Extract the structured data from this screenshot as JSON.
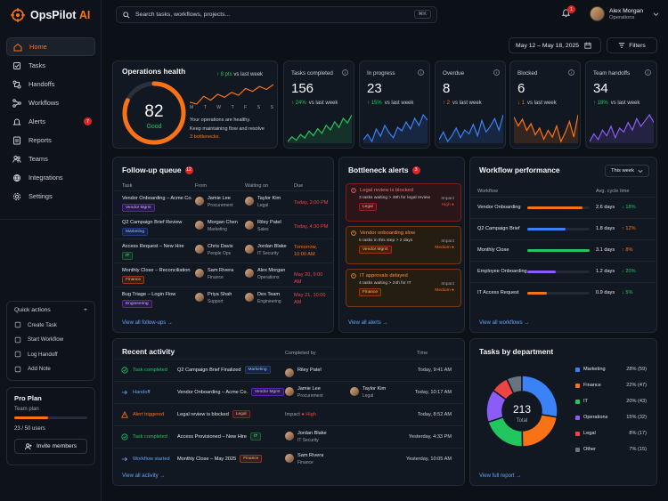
{
  "app": {
    "brand_main": "OpsPilot",
    "brand_accent": "AI"
  },
  "sidebar": {
    "items": [
      {
        "label": "Home",
        "icon": "home-icon"
      },
      {
        "label": "Tasks",
        "icon": "checkbox-icon"
      },
      {
        "label": "Handoffs",
        "icon": "handoff-icon"
      },
      {
        "label": "Workflows",
        "icon": "workflow-icon"
      },
      {
        "label": "Alerts",
        "icon": "bell-icon",
        "badge": "7"
      },
      {
        "label": "Reports",
        "icon": "report-icon"
      },
      {
        "label": "Teams",
        "icon": "team-icon"
      },
      {
        "label": "Integrations",
        "icon": "integration-icon"
      },
      {
        "label": "Settings",
        "icon": "gear-icon"
      }
    ]
  },
  "quick_actions": {
    "title": "Quick actions",
    "add": "+",
    "items": [
      "Create Task",
      "Start Workflow",
      "Log Handoff",
      "Add Note"
    ]
  },
  "plan": {
    "title": "Pro Plan",
    "subtitle": "Team plan",
    "usage": "23 / 50 users",
    "progress": 0.46,
    "button": "Invite members"
  },
  "header": {
    "search_placeholder": "Search tasks, workflows, projects...",
    "shortcut": "⌘K",
    "notif_count": "1",
    "user_name": "Alex Morgan",
    "user_role": "Operations",
    "date_range": "May 12 – May 18, 2025",
    "filters": "Filters"
  },
  "health": {
    "title": "Operations health",
    "score": "82",
    "score_value": 82,
    "score_label": "Good",
    "delta": "↑ 8 pts",
    "delta_suffix": "vs last week",
    "days": [
      "M",
      "T",
      "W",
      "T",
      "F",
      "S",
      "S"
    ],
    "trend": [
      64,
      62,
      70,
      66,
      72,
      69,
      74,
      71,
      78,
      75,
      80,
      77,
      82
    ],
    "text_1": "Your operations are healthy.",
    "text_2": "Keep maintaining flow and resolve",
    "text_link": "3 bottlenecks."
  },
  "metrics": [
    {
      "label": "Tasks completed",
      "value": "156",
      "delta": "↑ 24%",
      "dir": "up",
      "suffix": "vs last week",
      "color": "#22c55e",
      "spark": [
        10,
        14,
        11,
        16,
        13,
        19,
        15,
        21,
        17,
        24,
        20,
        27,
        22,
        30,
        26,
        33
      ]
    },
    {
      "label": "In progress",
      "value": "23",
      "delta": "↑ 15%",
      "dir": "up",
      "suffix": "vs last week",
      "color": "#3b82f6",
      "spark": [
        12,
        15,
        11,
        18,
        14,
        20,
        16,
        13,
        19,
        17,
        22,
        18,
        24,
        20,
        26,
        23
      ]
    },
    {
      "label": "Overdue",
      "value": "8",
      "delta": "↑ 2",
      "dir": "down",
      "suffix": "vs last week",
      "color": "#3b82f6",
      "spark": [
        14,
        18,
        13,
        16,
        20,
        15,
        19,
        17,
        22,
        16,
        24,
        18,
        21,
        25,
        19,
        27
      ]
    },
    {
      "label": "Blocked",
      "value": "6",
      "delta": "↓ 1",
      "dir": "down",
      "suffix": "vs last week",
      "color": "#f97316",
      "spark": [
        24,
        20,
        23,
        18,
        21,
        16,
        19,
        14,
        18,
        15,
        20,
        13,
        17,
        22,
        15,
        25
      ]
    },
    {
      "label": "Team handoffs",
      "value": "34",
      "delta": "↑ 18%",
      "dir": "up",
      "suffix": "vs last week",
      "color": "#8b5cf6",
      "spark": [
        12,
        16,
        13,
        18,
        15,
        20,
        14,
        19,
        17,
        22,
        18,
        24,
        20,
        23,
        26,
        22
      ]
    }
  ],
  "followup": {
    "title": "Follow-up queue",
    "count": "12",
    "cols": [
      "Task",
      "From",
      "Waiting on",
      "Due"
    ],
    "rows": [
      {
        "task": "Vendor Onboarding – Acme Co.",
        "tag": "Vendor Mgmt",
        "tag_color": "purple",
        "from": "Jamie Lee",
        "from_team": "Procurement",
        "wait": "Taylor Kim",
        "wait_team": "Legal",
        "due": "Today, 2:00 PM",
        "due_color": "red"
      },
      {
        "task": "Q2 Campaign Brief Review",
        "tag": "Marketing",
        "tag_color": "blue",
        "from": "Morgan Chen",
        "from_team": "Marketing",
        "wait": "Riley Patel",
        "wait_team": "Sales",
        "due": "Today, 4:30 PM",
        "due_color": "red"
      },
      {
        "task": "Access Request – New Hire",
        "tag": "IT",
        "tag_color": "green",
        "from": "Chris Davis",
        "from_team": "People Ops",
        "wait": "Jordan Blake",
        "wait_team": "IT Security",
        "due": "Tomorrow, 10:00 AM",
        "due_color": "orange"
      },
      {
        "task": "Monthly Close – Reconciliation",
        "tag": "Finance",
        "tag_color": "orange",
        "from": "Sam Rivera",
        "from_team": "Finance",
        "wait": "Alex Morgan",
        "wait_team": "Operations",
        "due": "May 20, 9:00 AM",
        "due_color": "red"
      },
      {
        "task": "Bug Triage – Login Flow",
        "tag": "Engineering",
        "tag_color": "purple",
        "from": "Priya Shah",
        "from_team": "Support",
        "wait": "Dex Team",
        "wait_team": "Engineering",
        "due": "May 21, 10:00 AM",
        "due_color": "red"
      }
    ],
    "link": "View all follow-ups →"
  },
  "bottlenecks": {
    "title": "Bottleneck alerts",
    "count": "3",
    "items": [
      {
        "title": "Legal review is blocked",
        "desc": "3 tasks waiting > 48h for legal review",
        "tag": "Legal",
        "impact_label": "Impact",
        "impact": "High",
        "sev": "red"
      },
      {
        "title": "Vendor onboarding slow",
        "desc": "5 tasks in this step > 2 days",
        "tag": "Vendor Mgmt",
        "impact_label": "Impact",
        "impact": "Medium",
        "sev": "orange"
      },
      {
        "title": "IT approvals delayed",
        "desc": "4 tasks waiting > 24h for IT",
        "tag": "Finance",
        "impact_label": "Impact",
        "impact": "Medium",
        "sev": "orange"
      }
    ],
    "link": "View all alerts →"
  },
  "workflow": {
    "title": "Workflow performance",
    "period": "This week",
    "col_1": "Workflow",
    "col_2": "Avg. cycle time",
    "rows": [
      {
        "name": "Vendor Onboarding",
        "value": "2.6 days",
        "fill": 0.88,
        "color": "#f97316",
        "pct": "↓ 18%",
        "dir": "up"
      },
      {
        "name": "Q2 Campaign Brief",
        "value": "1.8 days",
        "fill": 0.62,
        "color": "#3b82f6",
        "pct": "↑ 12%",
        "dir": "down"
      },
      {
        "name": "Monthly Close",
        "value": "3.1 days",
        "fill": 1.0,
        "color": "#22c55e",
        "pct": "↑ 8%",
        "dir": "down"
      },
      {
        "name": "Employee Onboarding",
        "value": "1.2 days",
        "fill": 0.45,
        "color": "#8b5cf6",
        "pct": "↓ 20%",
        "dir": "up"
      },
      {
        "name": "IT Access Request",
        "value": "0.9 days",
        "fill": 0.32,
        "color": "#f97316",
        "pct": "↓ 5%",
        "dir": "up"
      }
    ],
    "link": "View all workflows →"
  },
  "activity": {
    "title": "Recent activity",
    "col_by": "Completed by",
    "col_time": "Time",
    "rows": [
      {
        "type": "Task completed",
        "type_color": "#22c55e",
        "item": "Q2 Campaign Brief Finalized",
        "tag": "Marketing",
        "tag_color": "blue",
        "who": "Riley Patel",
        "who_team": "",
        "who2": "",
        "who2_team": "",
        "time": "Today, 9:41 AM"
      },
      {
        "type": "Handoff",
        "type_color": "#60a5fa",
        "item": "Vendor Onboarding – Acme Co.",
        "tag": "Vendor Mgmt",
        "tag_color": "purple",
        "who": "Jamie Lee",
        "who_team": "Procurement",
        "who2": "Taylor Kim",
        "who2_team": "Legal",
        "time": "Today, 10:17 AM"
      },
      {
        "type": "Alert triggered",
        "type_color": "#f97316",
        "item": "Legal review is blocked",
        "tag": "Legal",
        "tag_color": "red",
        "who": "Impact",
        "impact": "High",
        "who_team": "",
        "who2": "",
        "who2_team": "",
        "time": "Today, 8:52 AM"
      },
      {
        "type": "Task completed",
        "type_color": "#22c55e",
        "item": "Access Provisioned – New Hire",
        "tag": "IT",
        "tag_color": "green",
        "who": "Jordan Blake",
        "who_team": "IT Security",
        "who2": "",
        "who2_team": "",
        "time": "Yesterday, 4:33 PM"
      },
      {
        "type": "Workflow started",
        "type_color": "#60a5fa",
        "item": "Monthly Close – May 2025",
        "tag": "Finance",
        "tag_color": "orange",
        "who": "Sam Rivera",
        "who_team": "Finance",
        "who2": "",
        "who2_team": "",
        "time": "Yesterday, 10:05 AM"
      }
    ],
    "link": "View all activity →"
  },
  "chart_data": {
    "type": "pie",
    "title": "Tasks by department",
    "total": "213",
    "total_label": "Total",
    "series": [
      {
        "name": "Marketing",
        "pct": "28%",
        "count": "(59)",
        "value": 59,
        "color": "#3b82f6"
      },
      {
        "name": "Finance",
        "pct": "22%",
        "count": "(47)",
        "value": 47,
        "color": "#f97316"
      },
      {
        "name": "IT",
        "pct": "20%",
        "count": "(43)",
        "value": 43,
        "color": "#22c55e"
      },
      {
        "name": "Operations",
        "pct": "15%",
        "count": "(32)",
        "value": 32,
        "color": "#8b5cf6"
      },
      {
        "name": "Legal",
        "pct": "8%",
        "count": "(17)",
        "value": 17,
        "color": "#ef4444"
      },
      {
        "name": "Other",
        "pct": "7%",
        "count": "(15)",
        "value": 15,
        "color": "#6b7280"
      }
    ],
    "link": "View full report →"
  }
}
